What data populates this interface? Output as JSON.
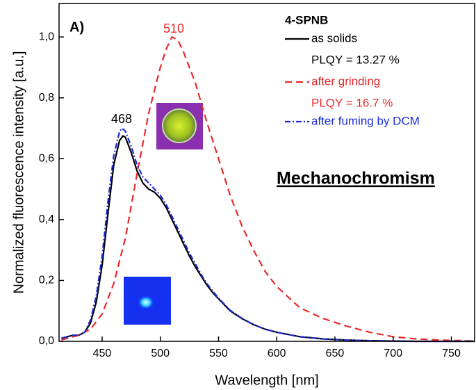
{
  "chart_data": {
    "type": "line",
    "panel_label": "A)",
    "legend_title": "4-SPNB",
    "annotation": "Mechanochromism",
    "peak_labels": [
      "468",
      "510"
    ],
    "x_label": "Wavelength [nm]",
    "y_label": "Normalized fluorescence intensity [a.u.]",
    "xlim": [
      413,
      770
    ],
    "ylim": [
      0,
      1.11
    ],
    "xticks": [
      450,
      500,
      550,
      600,
      650,
      700,
      750
    ],
    "yticks": [
      {
        "value": 0,
        "label": "0,0"
      },
      {
        "value": 0.2,
        "label": "0,2"
      },
      {
        "value": 0.4,
        "label": "0,4"
      },
      {
        "value": 0.6,
        "label": "0,6"
      },
      {
        "value": 0.8,
        "label": "0,8"
      },
      {
        "value": 1.0,
        "label": "1,0"
      }
    ],
    "series": [
      {
        "name": "as solids",
        "note": "PLQY = 13.27 %",
        "color": "#000000",
        "dash": "none",
        "x": [
          415,
          420,
          425,
          430,
          435,
          440,
          445,
          450,
          455,
          460,
          465,
          468,
          470,
          475,
          480,
          485,
          490,
          495,
          500,
          505,
          510,
          515,
          520,
          525,
          530,
          535,
          540,
          545,
          550,
          560,
          570,
          580,
          590,
          600,
          620,
          640,
          660,
          680,
          700,
          720,
          770
        ],
        "values": [
          0.01,
          0.015,
          0.02,
          0.02,
          0.03,
          0.06,
          0.13,
          0.25,
          0.42,
          0.58,
          0.66,
          0.675,
          0.67,
          0.62,
          0.56,
          0.52,
          0.5,
          0.49,
          0.47,
          0.44,
          0.4,
          0.36,
          0.32,
          0.28,
          0.245,
          0.215,
          0.185,
          0.16,
          0.14,
          0.1,
          0.075,
          0.055,
          0.04,
          0.03,
          0.015,
          0.008,
          0.004,
          0.002,
          0.001,
          0,
          0
        ]
      },
      {
        "name": "after grinding",
        "note": "PLQY = 16.7 %",
        "color": "#e8292b",
        "dash": "10,6",
        "x": [
          415,
          430,
          440,
          450,
          460,
          470,
          480,
          490,
          500,
          505,
          510,
          515,
          520,
          530,
          540,
          550,
          560,
          570,
          580,
          590,
          600,
          620,
          640,
          660,
          680,
          700,
          720,
          740,
          760,
          770
        ],
        "values": [
          0.005,
          0.02,
          0.04,
          0.09,
          0.19,
          0.34,
          0.55,
          0.75,
          0.9,
          0.96,
          1.0,
          0.99,
          0.95,
          0.85,
          0.72,
          0.6,
          0.48,
          0.38,
          0.3,
          0.23,
          0.18,
          0.11,
          0.075,
          0.05,
          0.03,
          0.015,
          0.008,
          0.004,
          0.002,
          0.001
        ]
      },
      {
        "name": "after fuming by DCM",
        "color": "#1a2bd6",
        "dash": "8,3,2,3",
        "x": [
          415,
          420,
          425,
          430,
          435,
          440,
          445,
          450,
          455,
          460,
          465,
          467,
          470,
          475,
          480,
          485,
          490,
          495,
          500,
          505,
          510,
          515,
          520,
          525,
          530,
          535,
          540,
          545,
          550,
          560,
          570,
          580,
          590,
          600,
          620,
          640,
          660,
          680,
          700,
          720,
          770
        ],
        "values": [
          0.01,
          0.015,
          0.02,
          0.02,
          0.03,
          0.07,
          0.15,
          0.28,
          0.46,
          0.61,
          0.69,
          0.7,
          0.69,
          0.64,
          0.58,
          0.54,
          0.52,
          0.5,
          0.48,
          0.45,
          0.41,
          0.37,
          0.33,
          0.29,
          0.255,
          0.22,
          0.19,
          0.165,
          0.142,
          0.102,
          0.076,
          0.055,
          0.04,
          0.03,
          0.015,
          0.008,
          0.004,
          0.002,
          0.001,
          0,
          0
        ]
      }
    ]
  }
}
